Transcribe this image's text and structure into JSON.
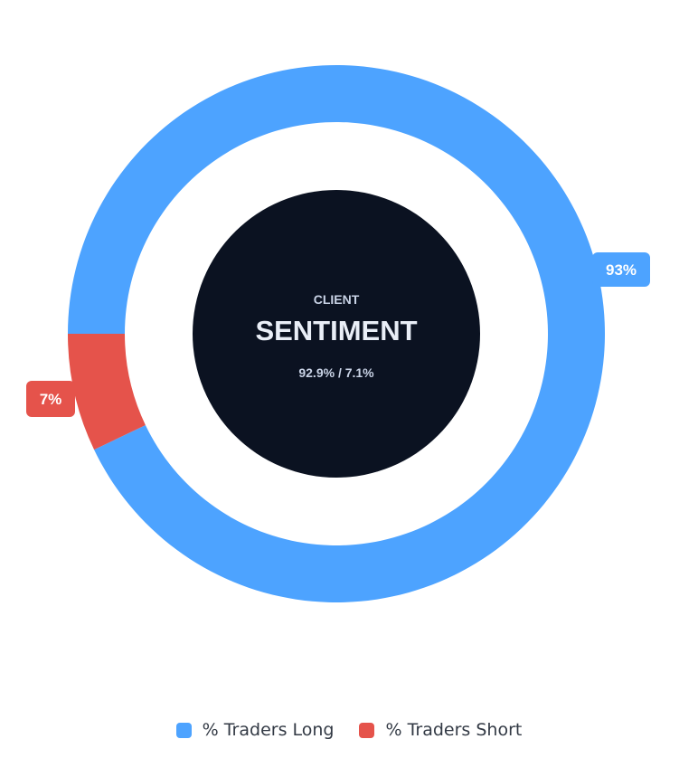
{
  "center": {
    "overline": "CLIENT",
    "title": "SENTIMENT",
    "subtitle": "92.9% / 7.1%"
  },
  "colors": {
    "long": "#4da3ff",
    "short": "#e5534b",
    "center_bg": "#0b1221",
    "center_text": "#e9eef7",
    "background": "#ffffff"
  },
  "chart_data": {
    "type": "pie",
    "variant": "donut",
    "categories": [
      "% Traders Long",
      "% Traders Short"
    ],
    "values": [
      92.9,
      7.1
    ],
    "data_labels": [
      "93%",
      "7%"
    ],
    "legend": {
      "position": "bottom-center",
      "entries": [
        "% Traders Long",
        "% Traders Short"
      ]
    }
  }
}
